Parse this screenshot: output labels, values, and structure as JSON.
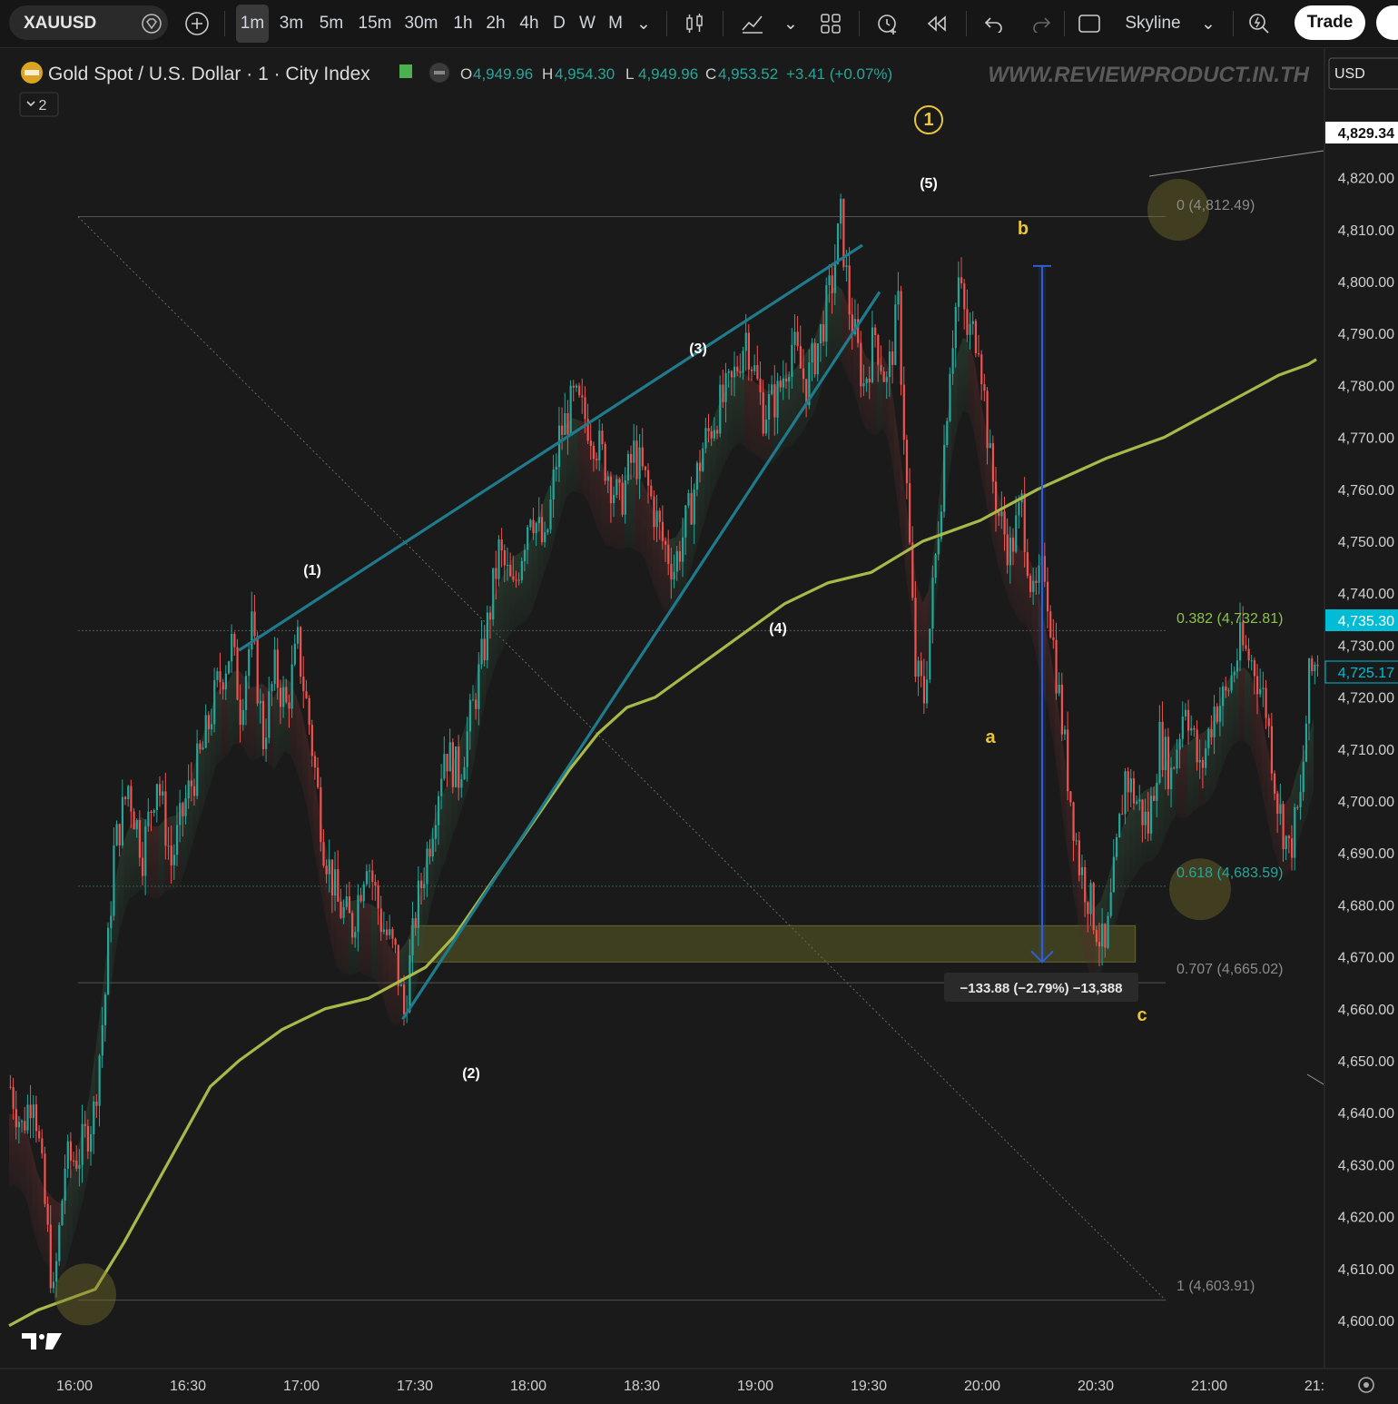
{
  "toolbar": {
    "symbol": "XAUUSD",
    "timeframes": [
      "1m",
      "3m",
      "5m",
      "15m",
      "30m",
      "1h",
      "2h",
      "4h",
      "D",
      "W",
      "M"
    ],
    "active_timeframe": "1m",
    "chart_style": "Skyline",
    "trade_label": "Trade"
  },
  "legend": {
    "title": "Gold Spot / U.S. Dollar · 1 · City Index",
    "o_label": "O",
    "o": "4,949.96",
    "h_label": "H",
    "h": "4,954.30",
    "l_label": "L",
    "l": "4,949.96",
    "c_label": "C",
    "c": "4,953.52",
    "change": "+3.41 (+0.07%)",
    "collapse_count": "2"
  },
  "watermark": "WWW.REVIEWPRODUCT.IN.TH",
  "currency": "USD",
  "colors": {
    "background": "#1a1a1a",
    "up": "#26a69a",
    "down": "#ef5350",
    "ma": "#a8b94a",
    "trendline": "#1f7a8c",
    "measure": "#2f5fd0",
    "fib_label": "#8a8a8a",
    "fib_key": "#8bc34a",
    "fib_teal": "#26a69a",
    "yellow_label": "#e8c53a",
    "price_tag": "#00bcd4"
  },
  "chart_data": {
    "type": "candlestick",
    "interval": "1m",
    "ylim": [
      4594,
      4840
    ],
    "y_ticks": [
      4600,
      4610,
      4620,
      4630,
      4640,
      4650,
      4660,
      4670,
      4680,
      4690,
      4700,
      4710,
      4720,
      4730,
      4740,
      4750,
      4760,
      4770,
      4780,
      4790,
      4800,
      4810,
      4820
    ],
    "y_tick_labels": [
      "4,600.00",
      "4,610.00",
      "4,620.00",
      "4,630.00",
      "4,640.00",
      "4,650.00",
      "4,660.00",
      "4,670.00",
      "4,680.00",
      "4,690.00",
      "4,700.00",
      "4,710.00",
      "4,720.00",
      "4,730.00",
      "4,740.00",
      "4,750.00",
      "4,760.00",
      "4,770.00",
      "4,780.00",
      "4,790.00",
      "4,800.00",
      "4,810.00",
      "4,820.00"
    ],
    "x_ticks": [
      "16:00",
      "16:30",
      "17:00",
      "17:30",
      "18:00",
      "18:30",
      "19:00",
      "19:30",
      "20:00",
      "20:30",
      "21:00",
      "21:"
    ],
    "price_tags": [
      {
        "label": "4,829.34",
        "value": 4829.34,
        "style": "white"
      },
      {
        "label": "4,735.30",
        "value": 4735.3,
        "style": "cyan"
      },
      {
        "label": "4,725.17",
        "value": 4725.17,
        "style": "outline"
      }
    ],
    "path": [
      [
        0,
        4645
      ],
      [
        4,
        4637
      ],
      [
        8,
        4645
      ],
      [
        12,
        4622
      ],
      [
        15,
        4604
      ],
      [
        19,
        4630
      ],
      [
        24,
        4632
      ],
      [
        29,
        4640
      ],
      [
        33,
        4663
      ],
      [
        36,
        4690
      ],
      [
        41,
        4703
      ],
      [
        46,
        4690
      ],
      [
        51,
        4705
      ],
      [
        56,
        4688
      ],
      [
        61,
        4700
      ],
      [
        67,
        4710
      ],
      [
        72,
        4722
      ],
      [
        77,
        4730
      ],
      [
        80,
        4718
      ],
      [
        84,
        4733
      ],
      [
        88,
        4712
      ],
      [
        92,
        4725
      ],
      [
        96,
        4718
      ],
      [
        100,
        4730
      ],
      [
        104,
        4715
      ],
      [
        109,
        4692
      ],
      [
        114,
        4680
      ],
      [
        119,
        4676
      ],
      [
        124,
        4690
      ],
      [
        129,
        4677
      ],
      [
        134,
        4670
      ],
      [
        137,
        4659
      ],
      [
        141,
        4678
      ],
      [
        146,
        4693
      ],
      [
        151,
        4710
      ],
      [
        156,
        4705
      ],
      [
        161,
        4718
      ],
      [
        165,
        4730
      ],
      [
        170,
        4748
      ],
      [
        175,
        4740
      ],
      [
        181,
        4757
      ],
      [
        186,
        4748
      ],
      [
        191,
        4770
      ],
      [
        196,
        4777
      ],
      [
        201,
        4773
      ],
      [
        207,
        4765
      ],
      [
        212,
        4757
      ],
      [
        217,
        4767
      ],
      [
        222,
        4760
      ],
      [
        227,
        4750
      ],
      [
        231,
        4745
      ],
      [
        236,
        4755
      ],
      [
        241,
        4768
      ],
      [
        246,
        4775
      ],
      [
        251,
        4780
      ],
      [
        256,
        4790
      ],
      [
        262,
        4775
      ],
      [
        267,
        4778
      ],
      [
        272,
        4788
      ],
      [
        277,
        4780
      ],
      [
        282,
        4790
      ],
      [
        286,
        4800
      ],
      [
        289,
        4812
      ],
      [
        292,
        4795
      ],
      [
        297,
        4780
      ],
      [
        301,
        4790
      ],
      [
        305,
        4780
      ],
      [
        309,
        4795
      ],
      [
        312,
        4760
      ],
      [
        315,
        4725
      ],
      [
        318,
        4720
      ],
      [
        321,
        4740
      ],
      [
        324,
        4760
      ],
      [
        327,
        4785
      ],
      [
        330,
        4800
      ],
      [
        333,
        4790
      ],
      [
        337,
        4790
      ],
      [
        341,
        4765
      ],
      [
        344,
        4755
      ],
      [
        348,
        4748
      ],
      [
        352,
        4757
      ],
      [
        356,
        4738
      ],
      [
        360,
        4745
      ],
      [
        364,
        4725
      ],
      [
        368,
        4705
      ],
      [
        372,
        4688
      ],
      [
        377,
        4678
      ],
      [
        381,
        4670
      ],
      [
        384,
        4685
      ],
      [
        388,
        4705
      ],
      [
        392,
        4700
      ],
      [
        396,
        4695
      ],
      [
        400,
        4712
      ],
      [
        404,
        4705
      ],
      [
        409,
        4720
      ],
      [
        414,
        4705
      ],
      [
        419,
        4718
      ],
      [
        423,
        4720
      ],
      [
        428,
        4730
      ],
      [
        433,
        4726
      ],
      [
        437,
        4718
      ],
      [
        441,
        4700
      ],
      [
        445,
        4690
      ],
      [
        449,
        4700
      ],
      [
        452,
        4723
      ],
      [
        455,
        4728
      ]
    ],
    "moving_average": [
      [
        0,
        4599
      ],
      [
        10,
        4602
      ],
      [
        20,
        4604
      ],
      [
        30,
        4606
      ],
      [
        40,
        4615
      ],
      [
        50,
        4625
      ],
      [
        60,
        4635
      ],
      [
        70,
        4645
      ],
      [
        80,
        4650
      ],
      [
        95,
        4656
      ],
      [
        110,
        4660
      ],
      [
        125,
        4662
      ],
      [
        135,
        4665
      ],
      [
        145,
        4668
      ],
      [
        155,
        4674
      ],
      [
        165,
        4682
      ],
      [
        175,
        4690
      ],
      [
        185,
        4698
      ],
      [
        195,
        4706
      ],
      [
        205,
        4713
      ],
      [
        215,
        4718
      ],
      [
        225,
        4720
      ],
      [
        240,
        4726
      ],
      [
        255,
        4732
      ],
      [
        270,
        4738
      ],
      [
        285,
        4742
      ],
      [
        300,
        4744
      ],
      [
        318,
        4750
      ],
      [
        328,
        4752
      ],
      [
        338,
        4754
      ],
      [
        348,
        4757
      ],
      [
        358,
        4760
      ],
      [
        370,
        4763
      ],
      [
        382,
        4766
      ],
      [
        392,
        4768
      ],
      [
        402,
        4770
      ],
      [
        412,
        4773
      ],
      [
        422,
        4776
      ],
      [
        432,
        4779
      ],
      [
        442,
        4782
      ],
      [
        452,
        4784
      ],
      [
        455,
        4785
      ]
    ],
    "wave_labels": [
      {
        "text": "(1)",
        "x": 107,
        "y": 4745
      },
      {
        "text": "(2)",
        "x": 135,
        "y": 4654
      },
      {
        "text": "(3)",
        "x": 204,
        "y": 4790
      },
      {
        "text": "(4)",
        "x": 232,
        "y": 4734
      },
      {
        "text": "(5)",
        "x": 289,
        "y": 4820
      },
      {
        "text": "a",
        "x": 312,
        "y": 4712
      },
      {
        "text": "b",
        "x": 328,
        "y": 4810
      },
      {
        "text": "c",
        "x": 386,
        "y": 4661
      },
      {
        "text": "1",
        "x": 289,
        "y": 4832,
        "circled": true
      }
    ],
    "fibonacci": [
      {
        "ratio": "0",
        "label": "0 (4,812.49)",
        "value": 4812.49
      },
      {
        "ratio": "0.382",
        "label": "0.382 (4,732.81)",
        "value": 4732.81
      },
      {
        "ratio": "0.618",
        "label": "0.618 (4,683.59)",
        "value": 4683.59
      },
      {
        "ratio": "0.707",
        "label": "0.707 (4,665.02)",
        "value": 4665.02
      },
      {
        "ratio": "1",
        "label": "1 (4,603.91)",
        "value": 4603.91
      }
    ],
    "trendlines": [
      {
        "from": [
          80,
          4729
        ],
        "to": [
          297,
          4807
        ]
      },
      {
        "from": [
          137,
          4658
        ],
        "to": [
          303,
          4798
        ]
      }
    ],
    "zone": {
      "x_from": 140,
      "x_to": 392,
      "y_from": 4669,
      "y_to": 4676
    },
    "measure": {
      "x": 339,
      "from": 4803,
      "to": 4669,
      "label": "−133.88 (−2.79%) −13,388"
    },
    "highlights": [
      {
        "x": 15,
        "y": 4605
      },
      {
        "x": 396,
        "y": 4683
      },
      {
        "x": 396,
        "y": 4812
      }
    ]
  }
}
